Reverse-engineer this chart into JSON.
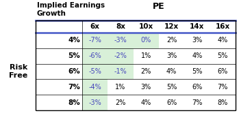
{
  "title_left": "Implied Earnings\nGrowth",
  "title_right": "PE",
  "col_headers": [
    "6x",
    "8x",
    "10x",
    "12x",
    "14x",
    "16x"
  ],
  "row_headers": [
    "4%",
    "5%",
    "6%",
    "7%",
    "8%"
  ],
  "row_label": "Risk\nFree",
  "cell_data": [
    [
      "-7%",
      "-3%",
      "0%",
      "2%",
      "3%",
      "4%"
    ],
    [
      "-6%",
      "-2%",
      "1%",
      "3%",
      "4%",
      "5%"
    ],
    [
      "-5%",
      "-1%",
      "2%",
      "4%",
      "5%",
      "6%"
    ],
    [
      "-4%",
      "1%",
      "3%",
      "5%",
      "6%",
      "7%"
    ],
    [
      "-3%",
      "2%",
      "4%",
      "6%",
      "7%",
      "8%"
    ]
  ],
  "header_line_color": "#5566cc",
  "cell_bg_normal": "#ffffff",
  "cell_bg_highlight": "#d8f0d8",
  "negative_color": "#4444bb",
  "positive_color": "#000000",
  "fig_bg": "#ffffff"
}
